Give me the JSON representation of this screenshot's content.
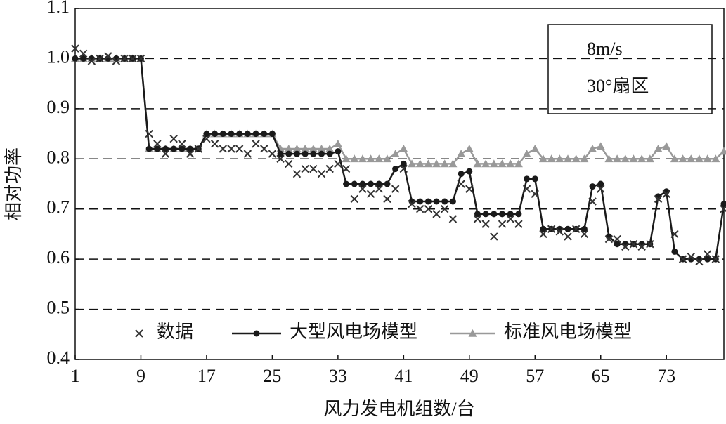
{
  "chart_data": {
    "type": "line",
    "xlabel": "风力发电机组数/台",
    "ylabel": "相对功率",
    "annotations": [
      "8m/s",
      "30°扇区"
    ],
    "x": [
      1,
      2,
      3,
      4,
      5,
      6,
      7,
      8,
      9,
      10,
      11,
      12,
      13,
      14,
      15,
      16,
      17,
      18,
      19,
      20,
      21,
      22,
      23,
      24,
      25,
      26,
      27,
      28,
      29,
      30,
      31,
      32,
      33,
      34,
      35,
      36,
      37,
      38,
      39,
      40,
      41,
      42,
      43,
      44,
      45,
      46,
      47,
      48,
      49,
      50,
      51,
      52,
      53,
      54,
      55,
      56,
      57,
      58,
      59,
      60,
      61,
      62,
      63,
      64,
      65,
      66,
      67,
      68,
      69,
      70,
      71,
      72,
      73,
      74,
      75,
      76,
      77,
      78,
      79,
      80
    ],
    "xlim": [
      1,
      80
    ],
    "xticks": [
      1,
      9,
      17,
      25,
      33,
      41,
      49,
      57,
      65,
      73
    ],
    "ylim": [
      0.4,
      1.1
    ],
    "yticks": [
      0.4,
      0.5,
      0.6,
      0.7,
      0.8,
      0.9,
      {
        "value": 1,
        "label": "1.0"
      },
      1.1
    ],
    "grid": true,
    "legend": "bottom",
    "series": [
      {
        "name": "数据",
        "color": "#333333",
        "marker": "x",
        "line": false,
        "values": [
          1.02,
          1.01,
          0.995,
          1.0,
          1.005,
          0.995,
          1.0,
          1.0,
          1.0,
          0.85,
          0.83,
          0.81,
          0.84,
          0.83,
          0.81,
          0.82,
          0.84,
          0.83,
          0.82,
          0.82,
          0.82,
          0.81,
          0.83,
          0.82,
          0.81,
          0.8,
          0.79,
          0.77,
          0.78,
          0.78,
          0.77,
          0.78,
          0.79,
          0.78,
          0.72,
          0.74,
          0.73,
          0.74,
          0.72,
          0.74,
          0.78,
          0.71,
          0.7,
          0.7,
          0.69,
          0.7,
          0.68,
          0.75,
          0.74,
          0.68,
          0.67,
          0.645,
          0.67,
          0.68,
          0.67,
          0.74,
          0.73,
          0.65,
          0.66,
          0.655,
          0.645,
          0.66,
          0.65,
          0.715,
          0.74,
          0.64,
          0.64,
          0.625,
          0.63,
          0.625,
          0.63,
          0.72,
          0.73,
          0.65,
          0.6,
          0.605,
          0.595,
          0.61,
          0.6,
          0.7
        ]
      },
      {
        "name": "大型风电场模型",
        "color": "#1a1a1a",
        "marker": "circle",
        "line": true,
        "values": [
          1.0,
          1.0,
          1.0,
          1.0,
          1.0,
          1.0,
          1.0,
          1.0,
          1.0,
          0.82,
          0.82,
          0.82,
          0.82,
          0.82,
          0.82,
          0.82,
          0.85,
          0.85,
          0.85,
          0.85,
          0.85,
          0.85,
          0.85,
          0.85,
          0.85,
          0.81,
          0.81,
          0.81,
          0.81,
          0.81,
          0.81,
          0.81,
          0.815,
          0.75,
          0.75,
          0.75,
          0.75,
          0.75,
          0.75,
          0.78,
          0.79,
          0.715,
          0.715,
          0.715,
          0.715,
          0.715,
          0.715,
          0.77,
          0.775,
          0.69,
          0.69,
          0.69,
          0.69,
          0.69,
          0.69,
          0.76,
          0.76,
          0.66,
          0.66,
          0.66,
          0.66,
          0.66,
          0.66,
          0.745,
          0.75,
          0.645,
          0.63,
          0.63,
          0.63,
          0.63,
          0.63,
          0.725,
          0.735,
          0.615,
          0.6,
          0.6,
          0.6,
          0.6,
          0.6,
          0.71
        ]
      },
      {
        "name": "标准风电场模型",
        "color": "#999999",
        "marker": "triangle",
        "line": true,
        "values": [
          1.0,
          1.0,
          1.0,
          1.0,
          1.0,
          1.0,
          1.0,
          1.0,
          1.0,
          0.82,
          0.82,
          0.82,
          0.82,
          0.82,
          0.82,
          0.82,
          0.85,
          0.85,
          0.85,
          0.85,
          0.85,
          0.85,
          0.85,
          0.85,
          0.85,
          0.82,
          0.82,
          0.82,
          0.82,
          0.82,
          0.82,
          0.82,
          0.83,
          0.8,
          0.8,
          0.8,
          0.8,
          0.8,
          0.8,
          0.81,
          0.82,
          0.79,
          0.79,
          0.79,
          0.79,
          0.79,
          0.79,
          0.81,
          0.82,
          0.79,
          0.79,
          0.79,
          0.79,
          0.79,
          0.79,
          0.81,
          0.82,
          0.8,
          0.8,
          0.8,
          0.8,
          0.8,
          0.8,
          0.82,
          0.825,
          0.8,
          0.8,
          0.8,
          0.8,
          0.8,
          0.8,
          0.82,
          0.825,
          0.8,
          0.8,
          0.8,
          0.8,
          0.8,
          0.8,
          0.815
        ]
      }
    ]
  }
}
